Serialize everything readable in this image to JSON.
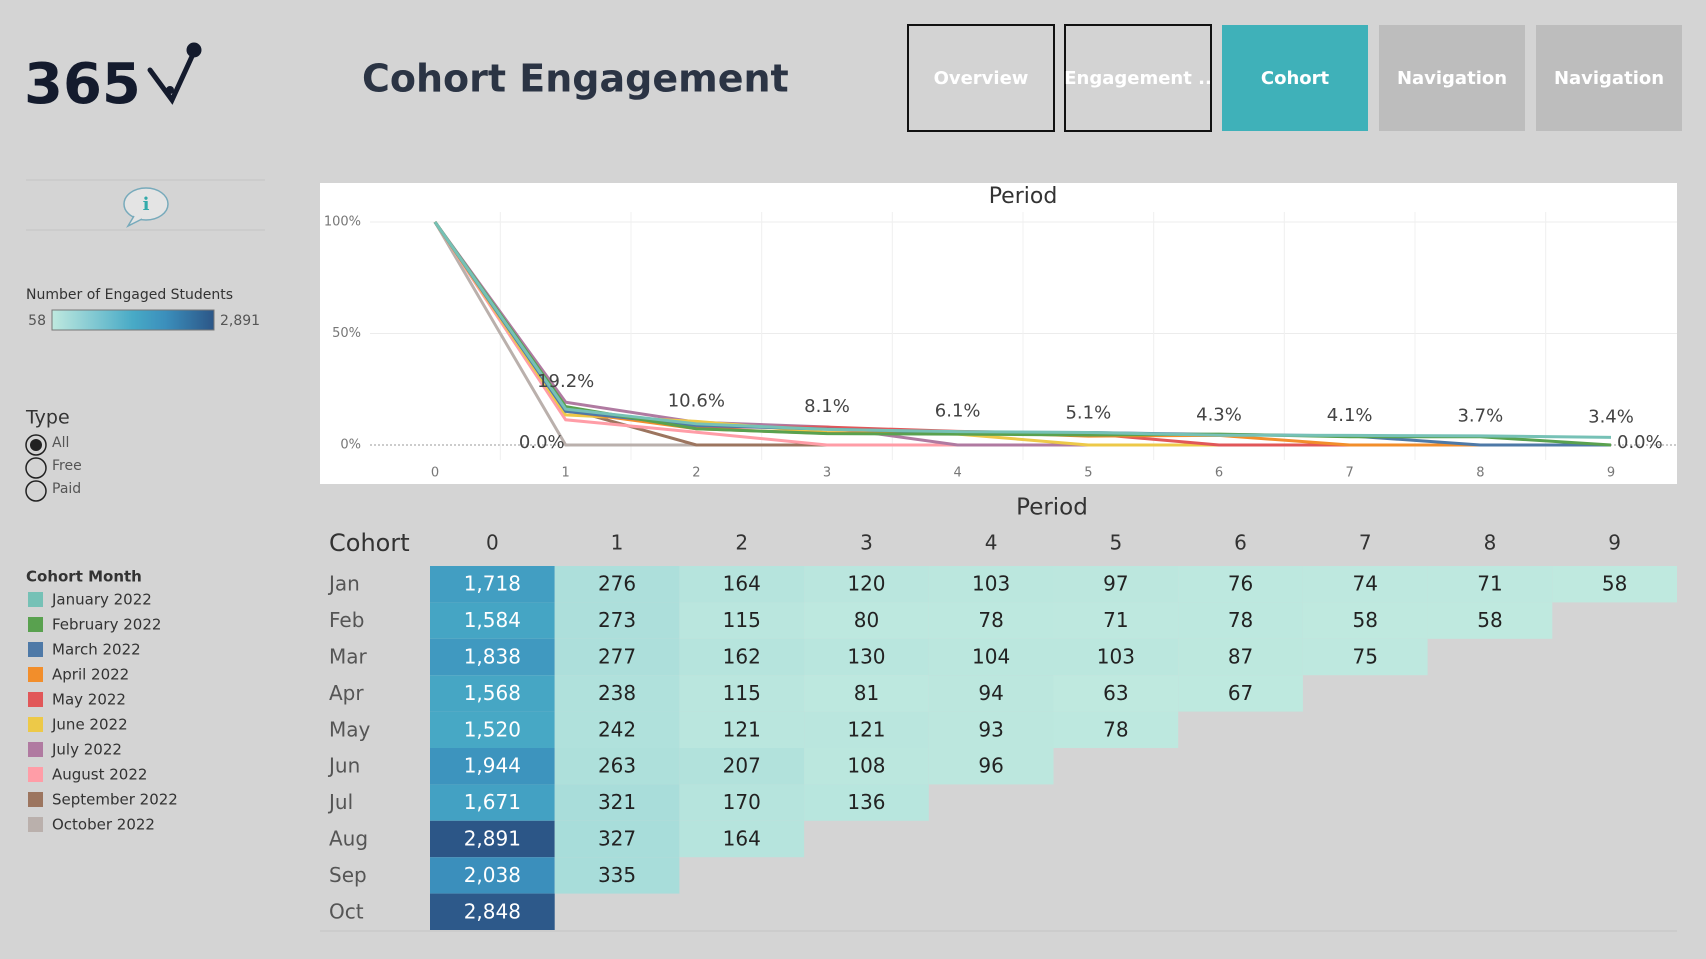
{
  "header": {
    "logo": "365",
    "title": "Cohort Engagement",
    "nav": [
      "Overview",
      "Engagement ..",
      "Cohort",
      "Navigation",
      "Navigation"
    ],
    "active": 2
  },
  "sidebar": {
    "color_legend": {
      "title": "Number of Engaged Students",
      "min": 58,
      "max": {
        "value": 2891,
        "label": "2,891"
      }
    },
    "type_filter": {
      "title": "Type",
      "options": [
        "All",
        "Free",
        "Paid"
      ],
      "selected": 0
    },
    "cohort_legend_title": "Cohort Month"
  },
  "chart_data": {
    "type": "line",
    "title": "Period",
    "x": [
      0,
      1,
      2,
      3,
      4,
      5,
      6,
      7,
      8,
      9
    ],
    "xlim": [
      0,
      9
    ],
    "xticks": [
      0,
      1,
      2,
      3,
      4,
      5,
      6,
      7,
      8,
      9
    ],
    "ylim": [
      0,
      100
    ],
    "yticks": [
      {
        "value": 0,
        "label": "0%"
      },
      {
        "value": 50,
        "label": "50%"
      },
      {
        "value": 100,
        "label": "100%"
      }
    ],
    "grid": true,
    "series": [
      {
        "name": "January 2022",
        "color": "#76c1b6",
        "values": [
          100,
          16.1,
          9.5,
          7.0,
          6.0,
          5.6,
          4.4,
          4.3,
          4.1,
          3.4
        ]
      },
      {
        "name": "February 2022",
        "color": "#59a14f",
        "values": [
          100,
          17.2,
          7.3,
          5.1,
          4.9,
          4.5,
          4.9,
          3.7,
          3.7,
          0
        ]
      },
      {
        "name": "March 2022",
        "color": "#4e79a7",
        "values": [
          100,
          15.1,
          8.8,
          7.1,
          5.7,
          5.6,
          4.7,
          4.1,
          0,
          0
        ]
      },
      {
        "name": "April 2022",
        "color": "#f28e2b",
        "values": [
          100,
          15.2,
          7.3,
          5.2,
          6.0,
          4.0,
          4.3,
          0,
          0,
          0
        ]
      },
      {
        "name": "May 2022",
        "color": "#e15759",
        "values": [
          100,
          15.9,
          8.0,
          8.0,
          6.1,
          5.1,
          0,
          0,
          0,
          0
        ]
      },
      {
        "name": "June 2022",
        "color": "#edc948",
        "values": [
          100,
          13.5,
          10.6,
          5.6,
          4.9,
          0,
          0,
          0,
          0,
          0
        ]
      },
      {
        "name": "July 2022",
        "color": "#b07aa1",
        "values": [
          100,
          19.2,
          10.2,
          8.1,
          0,
          0,
          0,
          0,
          0,
          0
        ]
      },
      {
        "name": "August 2022",
        "color": "#ff9da7",
        "values": [
          100,
          11.3,
          5.7,
          0,
          0,
          0,
          0,
          0,
          0,
          0
        ]
      },
      {
        "name": "September 2022",
        "color": "#9c755f",
        "values": [
          100,
          16.4,
          0,
          0,
          0,
          0,
          0,
          0,
          0,
          0
        ]
      },
      {
        "name": "October 2022",
        "color": "#bab0ac",
        "values": [
          100,
          0,
          0,
          0,
          0,
          0,
          0,
          0,
          0,
          0
        ]
      }
    ],
    "annotations": [
      {
        "x": 1,
        "y": 19.2,
        "label": "19.2%"
      },
      {
        "x": 1,
        "y": 0,
        "label": "0.0%"
      },
      {
        "x": 2,
        "y": 10.6,
        "label": "10.6%"
      },
      {
        "x": 3,
        "y": 8.1,
        "label": "8.1%"
      },
      {
        "x": 4,
        "y": 6.1,
        "label": "6.1%"
      },
      {
        "x": 5,
        "y": 5.1,
        "label": "5.1%"
      },
      {
        "x": 6,
        "y": 4.3,
        "label": "4.3%"
      },
      {
        "x": 7,
        "y": 4.1,
        "label": "4.1%"
      },
      {
        "x": 8,
        "y": 3.7,
        "label": "3.7%"
      },
      {
        "x": 9,
        "y": 3.4,
        "label": "3.4%"
      },
      {
        "x": 9,
        "y": 0,
        "label": "0.0%"
      }
    ]
  },
  "table": {
    "title": "Period",
    "row_header": "Cohort",
    "columns": [
      0,
      1,
      2,
      3,
      4,
      5,
      6,
      7,
      8,
      9
    ],
    "rows": [
      {
        "label": "Jan",
        "values": [
          1718,
          276,
          164,
          120,
          103,
          97,
          76,
          74,
          71,
          58
        ],
        "value_labels": [
          "1,718",
          "276",
          "164",
          "120",
          "103",
          "97",
          "76",
          "74",
          "71",
          "58"
        ]
      },
      {
        "label": "Feb",
        "values": [
          1584,
          273,
          115,
          80,
          78,
          71,
          78,
          58,
          58
        ],
        "value_labels": [
          "1,584",
          "273",
          "115",
          "80",
          "78",
          "71",
          "78",
          "58",
          "58"
        ]
      },
      {
        "label": "Mar",
        "values": [
          1838,
          277,
          162,
          130,
          104,
          103,
          87,
          75
        ],
        "value_labels": [
          "1,838",
          "277",
          "162",
          "130",
          "104",
          "103",
          "87",
          "75"
        ]
      },
      {
        "label": "Apr",
        "values": [
          1568,
          238,
          115,
          81,
          94,
          63,
          67
        ],
        "value_labels": [
          "1,568",
          "238",
          "115",
          "81",
          "94",
          "63",
          "67"
        ]
      },
      {
        "label": "May",
        "values": [
          1520,
          242,
          121,
          121,
          93,
          78
        ],
        "value_labels": [
          "1,520",
          "242",
          "121",
          "121",
          "93",
          "78"
        ]
      },
      {
        "label": "Jun",
        "values": [
          1944,
          263,
          207,
          108,
          96
        ],
        "value_labels": [
          "1,944",
          "263",
          "207",
          "108",
          "96"
        ]
      },
      {
        "label": "Jul",
        "values": [
          1671,
          321,
          170,
          136
        ],
        "value_labels": [
          "1,671",
          "321",
          "170",
          "136"
        ]
      },
      {
        "label": "Aug",
        "values": [
          2891,
          327,
          164
        ],
        "value_labels": [
          "2,891",
          "327",
          "164"
        ]
      },
      {
        "label": "Sep",
        "values": [
          2038,
          335
        ],
        "value_labels": [
          "2,038",
          "335"
        ]
      },
      {
        "label": "Oct",
        "values": [
          2848
        ],
        "value_labels": [
          "2,848"
        ]
      }
    ]
  }
}
